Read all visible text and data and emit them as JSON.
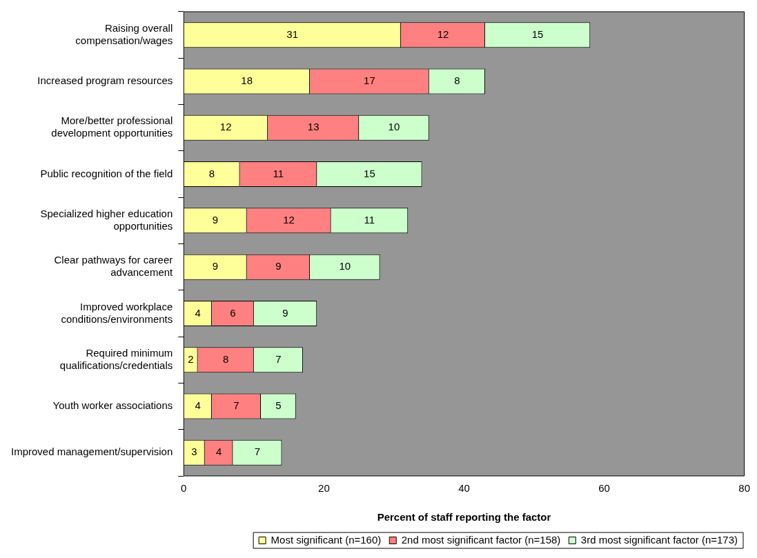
{
  "chart_data": {
    "type": "bar",
    "orientation": "horizontal",
    "stacked": true,
    "xlabel": "Percent of staff reporting the factor",
    "categories": [
      "Raising overall compensation/wages",
      "Increased program resources",
      "More/better professional development opportunities",
      "Public recognition of the field",
      "Specialized higher education opportunities",
      "Clear pathways for career advancement",
      "Improved workplace conditions/environments",
      "Required minimum qualifications/credentials",
      "Youth worker associations",
      "Improved management/supervision"
    ],
    "series": [
      {
        "name": "Most significant (n=160)",
        "color": "#ffff99",
        "values": [
          31,
          18,
          12,
          8,
          9,
          9,
          4,
          2,
          4,
          3
        ]
      },
      {
        "name": "2nd most significant factor (n=158)",
        "color": "#ff8080",
        "values": [
          12,
          17,
          13,
          11,
          12,
          9,
          6,
          8,
          7,
          4
        ]
      },
      {
        "name": "3rd most significant factor (n=173)",
        "color": "#ccffcc",
        "values": [
          15,
          8,
          10,
          15,
          11,
          10,
          9,
          7,
          5,
          7
        ]
      }
    ],
    "xlim": [
      0,
      80
    ],
    "xticks": [
      0,
      20,
      40,
      60,
      80
    ],
    "data_labels": true,
    "grid": false,
    "legend": "bottom"
  }
}
